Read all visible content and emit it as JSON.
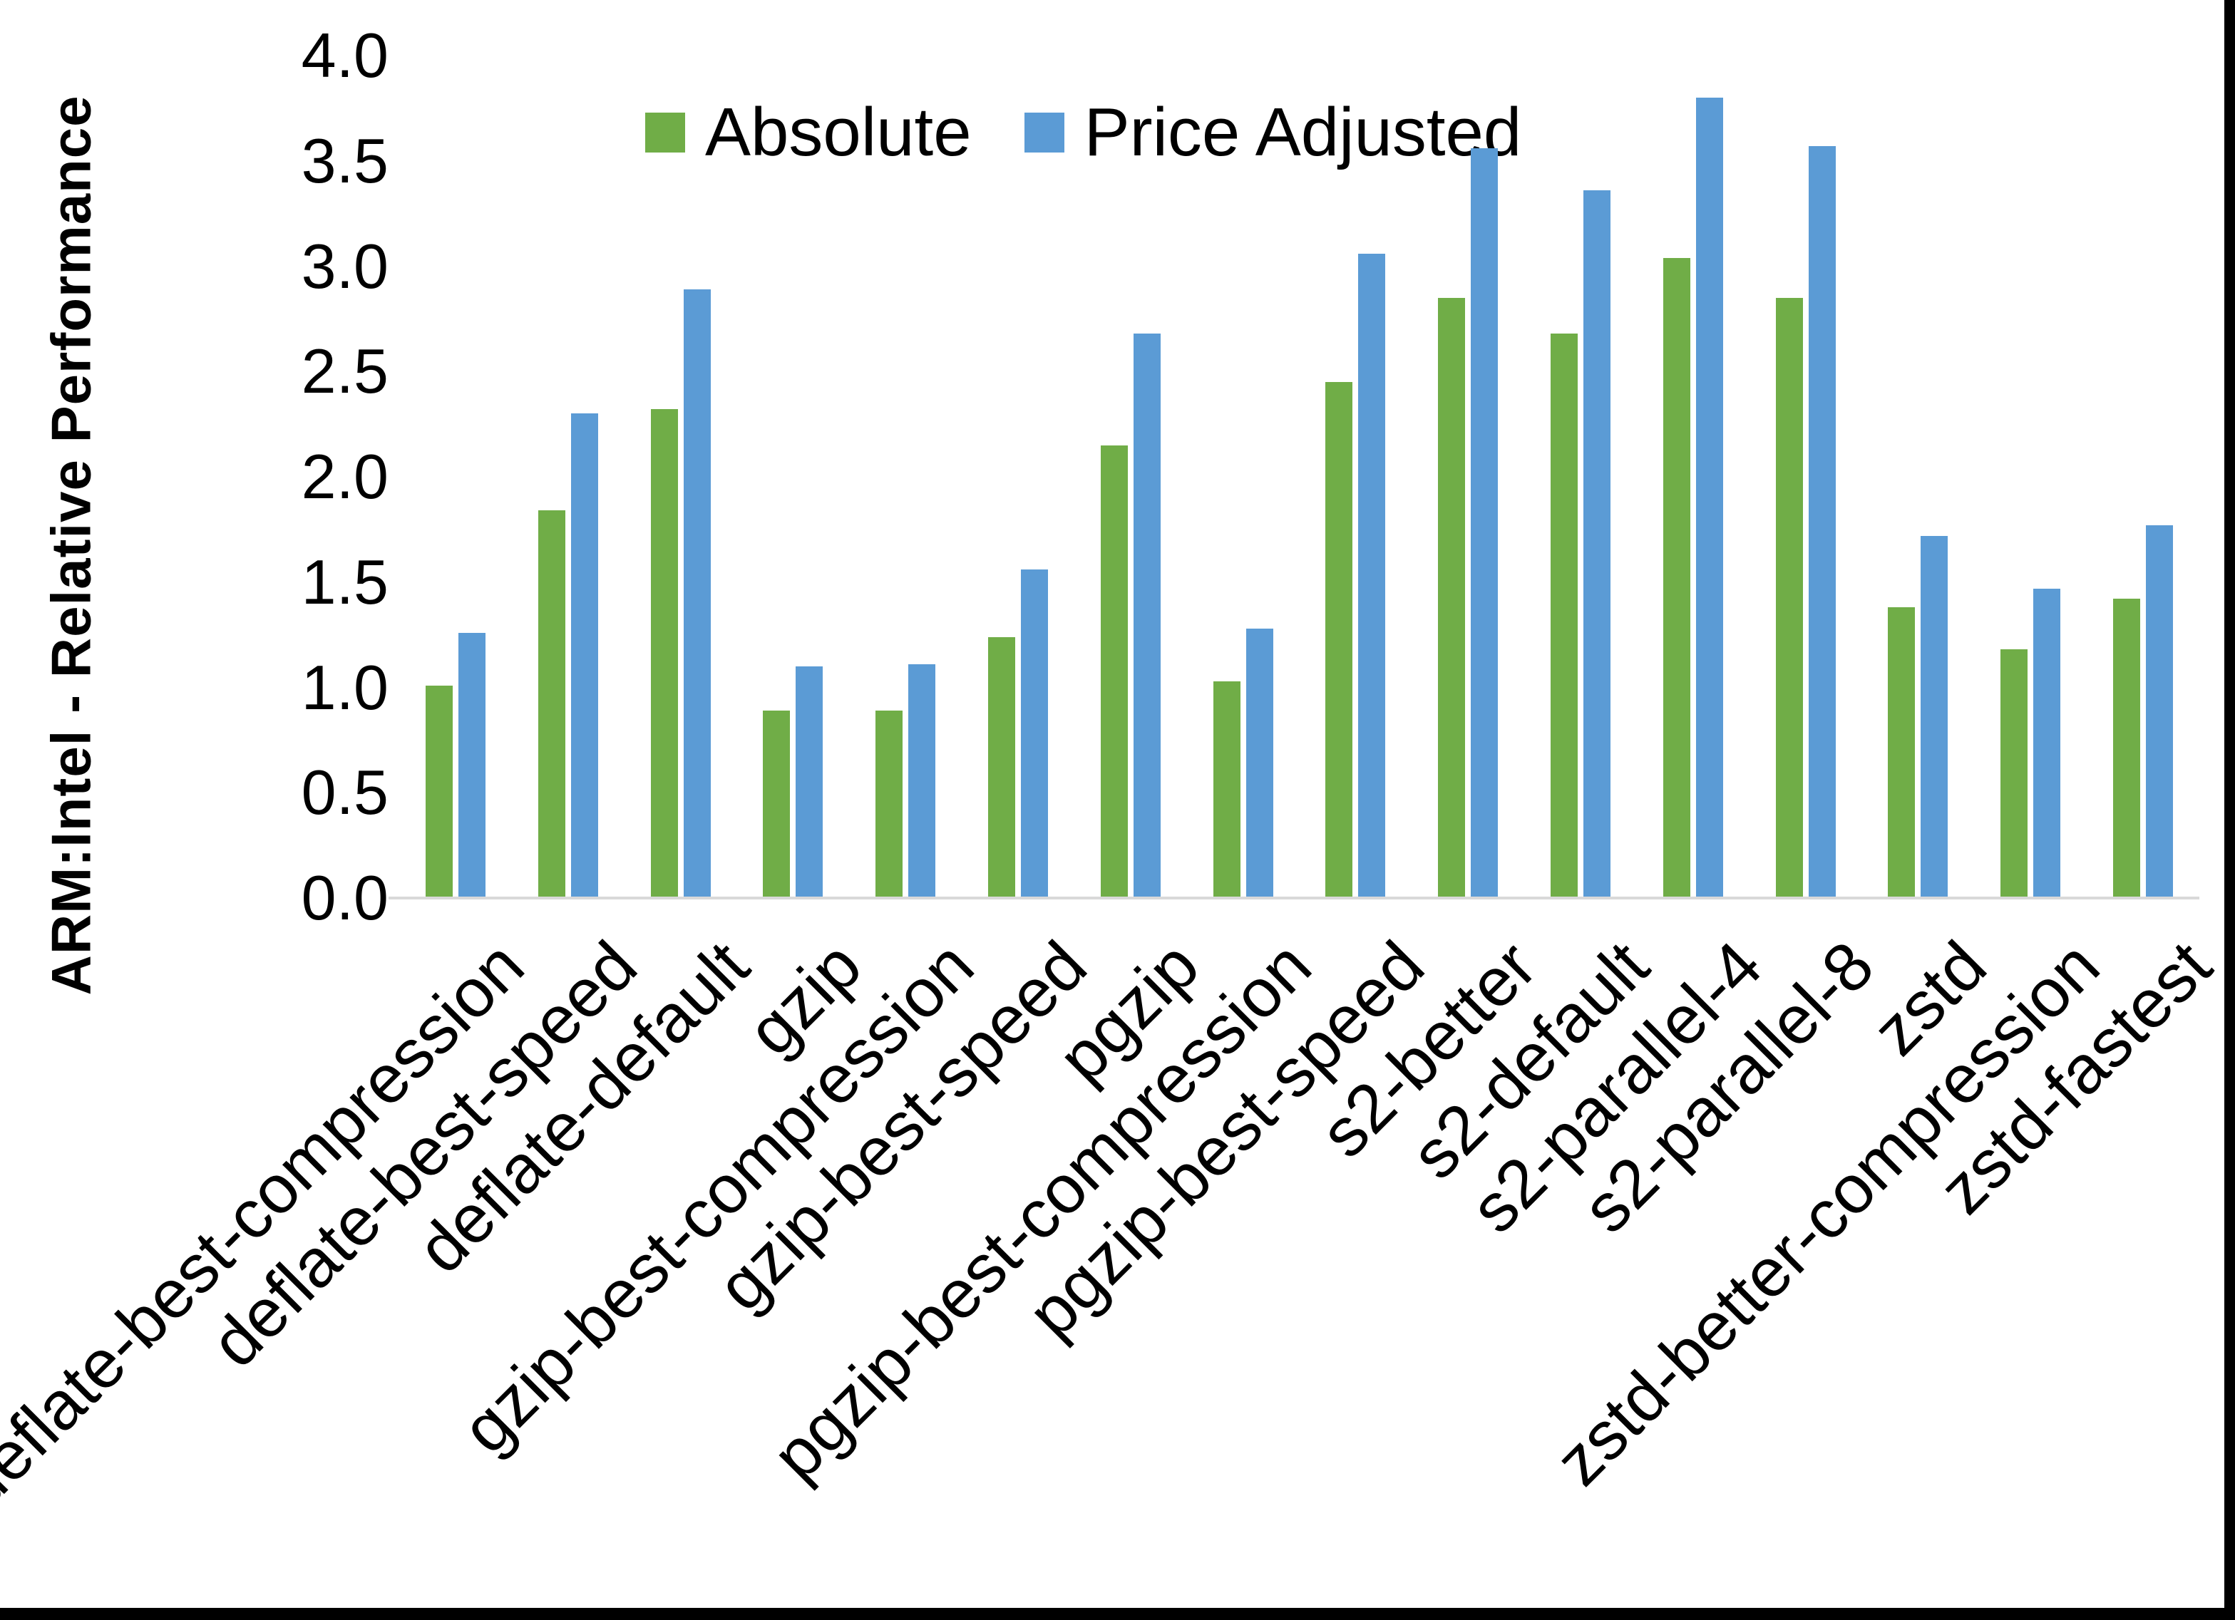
{
  "chart_data": {
    "type": "bar",
    "title": "",
    "xlabel": "",
    "ylabel": "ARM:Intel - Relative Performance",
    "ylim": [
      0.0,
      4.0
    ],
    "ytick_step": 0.5,
    "yticks": [
      "4.0",
      "3.5",
      "3.0",
      "2.5",
      "2.0",
      "1.5",
      "1.0",
      "0.5",
      "0.0"
    ],
    "grid": false,
    "legend_position": "top-center",
    "axis_line_color": "#D9D9D9",
    "categories": [
      "deflate-best-compression",
      "deflate-best-speed",
      "deflate-default",
      "gzip",
      "gzip-best-compression",
      "gzip-best-speed",
      "pgzip",
      "pgzip-best-compression",
      "pgzip-best-speed",
      "s2-better",
      "s2-default",
      "s2-parallel-4",
      "s2-parallel-8",
      "zstd",
      "zstd-better-compression",
      "zstd-fastest"
    ],
    "series": [
      {
        "name": "Absolute",
        "color": "#70AD47",
        "values": [
          1.01,
          1.84,
          2.32,
          0.89,
          0.89,
          1.24,
          2.15,
          1.03,
          2.45,
          2.85,
          2.68,
          3.04,
          2.85,
          1.38,
          1.18,
          1.42
        ]
      },
      {
        "name": "Price Adjusted",
        "color": "#5B9BD5",
        "values": [
          1.26,
          2.3,
          2.89,
          1.1,
          1.11,
          1.56,
          2.68,
          1.28,
          3.06,
          3.56,
          3.36,
          3.8,
          3.57,
          1.72,
          1.47,
          1.77
        ]
      }
    ]
  },
  "frame": {
    "border_color": "#000000"
  }
}
